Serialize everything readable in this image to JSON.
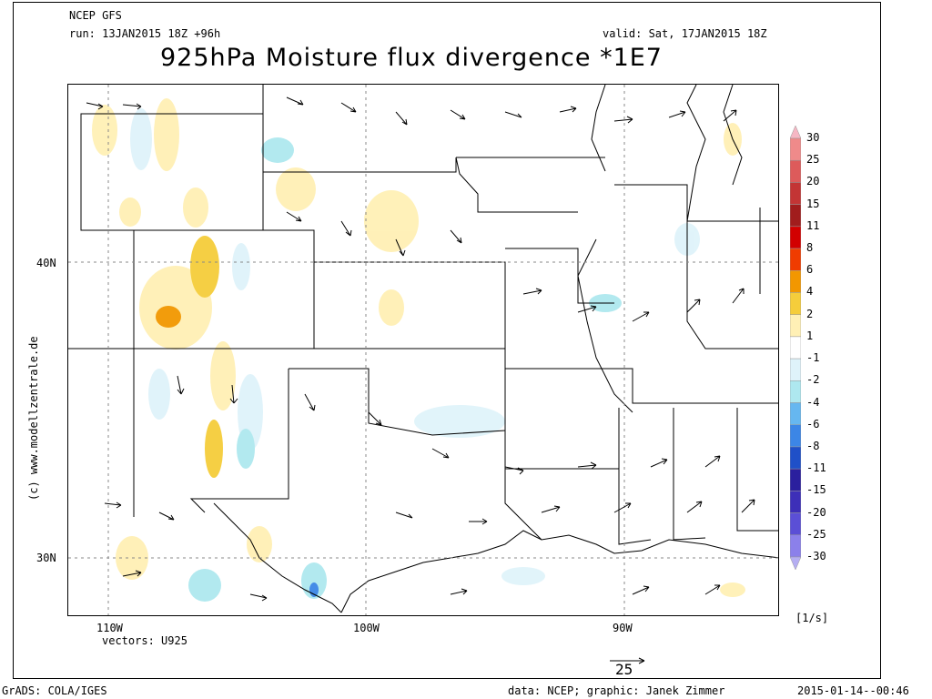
{
  "header": {
    "model": "NCEP GFS",
    "run": "run: 13JAN2015 18Z +96h",
    "valid": "valid: Sat, 17JAN2015 18Z",
    "title": "925hPa Moisture flux divergence *1E7"
  },
  "map": {
    "lat_labels": [
      "40N",
      "30N"
    ],
    "lon_labels": [
      "110W",
      "100W",
      "90W"
    ],
    "vectors_label": "vectors: U925",
    "watermark": "(c) www.modellzentrale.de"
  },
  "colorbar": {
    "labels": [
      "30",
      "25",
      "20",
      "15",
      "11",
      "8",
      "6",
      "4",
      "2",
      "1",
      "-1",
      "-2",
      "-4",
      "-6",
      "-8",
      "-11",
      "-15",
      "-20",
      "-25",
      "-30"
    ],
    "colors": [
      "#f6b7c4",
      "#ef8a8a",
      "#dd5b5b",
      "#c33535",
      "#a11d1d",
      "#d20000",
      "#f03c00",
      "#f29700",
      "#f5cd3b",
      "#fff0b5",
      "#ffffff",
      "#dff3fa",
      "#aee8ef",
      "#66b7f0",
      "#3c86e6",
      "#1f50c8",
      "#2a1f9e",
      "#3d2fb8",
      "#5b4fd6",
      "#8b80ea",
      "#b5aef2"
    ],
    "units": "[1/s]"
  },
  "reference_vector": {
    "value": "25"
  },
  "footer": {
    "software": "GrADS: COLA/IGES",
    "credit": "data: NCEP; graphic: Janek Zimmer",
    "timestamp": "2015-01-14--00:46"
  }
}
